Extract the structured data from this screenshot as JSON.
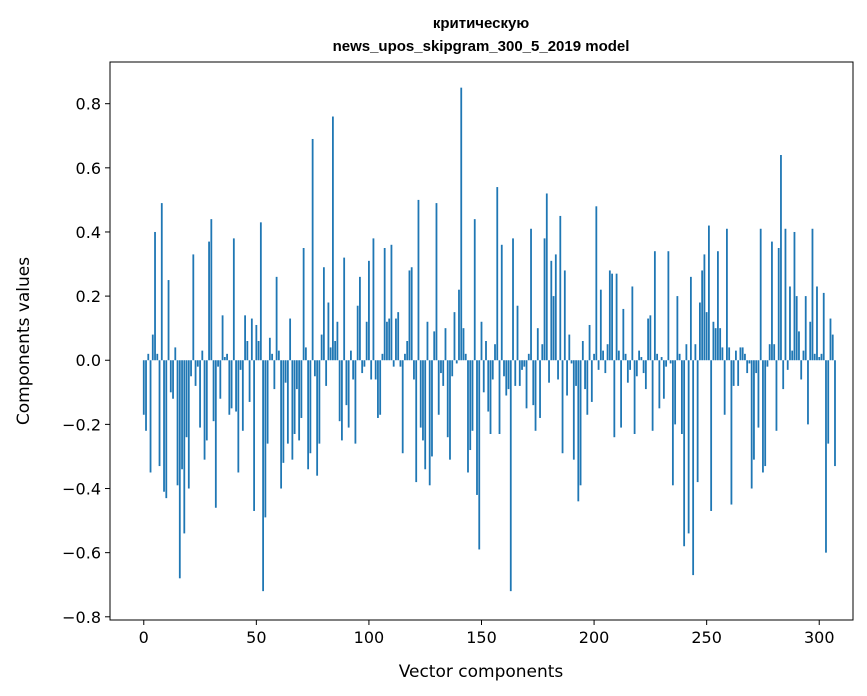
{
  "chart_data": {
    "type": "bar",
    "title_lines": [
      "критическую",
      "news_upos_skipgram_300_5_2019 model"
    ],
    "xlabel": "Vector components",
    "ylabel": "Components values",
    "xlim": [
      -15,
      315
    ],
    "ylim": [
      -0.81,
      0.93
    ],
    "xticks": [
      0,
      50,
      100,
      150,
      200,
      250,
      300
    ],
    "xtick_labels": [
      "0",
      "50",
      "100",
      "150",
      "200",
      "250",
      "300"
    ],
    "yticks": [
      -0.8,
      -0.6,
      -0.4,
      -0.2,
      0.0,
      0.2,
      0.4,
      0.6,
      0.8
    ],
    "ytick_labels": [
      "−0.8",
      "−0.6",
      "−0.4",
      "−0.2",
      "0.0",
      "0.2",
      "0.4",
      "0.6",
      "0.8"
    ],
    "bar_color": "#1f77b4",
    "grid": false,
    "values": [
      -0.17,
      -0.22,
      0.02,
      -0.35,
      0.08,
      0.4,
      0.02,
      -0.33,
      0.49,
      -0.41,
      -0.43,
      0.25,
      -0.1,
      -0.12,
      0.04,
      -0.39,
      -0.68,
      -0.34,
      -0.54,
      -0.24,
      -0.4,
      -0.05,
      0.33,
      -0.08,
      -0.02,
      -0.21,
      0.03,
      -0.31,
      -0.25,
      0.37,
      0.44,
      -0.19,
      -0.46,
      -0.02,
      -0.12,
      0.14,
      0.01,
      0.02,
      -0.17,
      -0.15,
      0.38,
      -0.16,
      -0.35,
      -0.03,
      -0.22,
      0.14,
      0.06,
      -0.13,
      0.13,
      -0.47,
      0.11,
      0.06,
      0.43,
      -0.72,
      -0.49,
      -0.26,
      0.07,
      0.02,
      -0.09,
      0.26,
      0.03,
      -0.4,
      -0.32,
      -0.07,
      -0.26,
      0.13,
      -0.31,
      -0.23,
      -0.09,
      -0.25,
      -0.18,
      0.35,
      0.04,
      -0.34,
      -0.29,
      0.69,
      -0.05,
      -0.36,
      -0.26,
      0.08,
      0.29,
      -0.08,
      0.18,
      0.04,
      0.76,
      0.06,
      0.12,
      -0.19,
      -0.25,
      0.32,
      -0.14,
      -0.21,
      0.03,
      -0.06,
      -0.26,
      0.17,
      0.26,
      -0.04,
      -0.02,
      0.12,
      0.31,
      -0.06,
      0.38,
      -0.06,
      -0.18,
      -0.17,
      0.02,
      0.35,
      0.12,
      0.13,
      0.36,
      -0.02,
      0.13,
      0.15,
      -0.02,
      -0.29,
      0.02,
      0.06,
      0.28,
      0.29,
      -0.06,
      -0.38,
      0.5,
      -0.21,
      -0.25,
      -0.34,
      0.12,
      -0.39,
      -0.3,
      0.09,
      0.49,
      -0.17,
      -0.04,
      -0.08,
      0.1,
      -0.24,
      -0.31,
      -0.05,
      0.15,
      -0.01,
      0.22,
      0.85,
      0.1,
      0.02,
      -0.35,
      -0.28,
      -0.22,
      0.44,
      -0.42,
      -0.59,
      0.12,
      -0.1,
      0.06,
      -0.16,
      -0.23,
      -0.06,
      0.05,
      0.54,
      -0.23,
      0.36,
      -0.05,
      -0.11,
      -0.09,
      -0.72,
      0.38,
      -0.08,
      0.17,
      -0.08,
      -0.03,
      -0.02,
      -0.15,
      0.02,
      0.41,
      -0.14,
      -0.22,
      0.1,
      -0.18,
      0.05,
      0.38,
      0.52,
      -0.07,
      0.31,
      0.2,
      0.33,
      -0.06,
      0.45,
      -0.29,
      0.28,
      -0.11,
      0.08,
      -0.01,
      -0.31,
      -0.08,
      -0.44,
      -0.39,
      0.06,
      -0.09,
      -0.17,
      0.11,
      -0.13,
      0.02,
      0.48,
      -0.03,
      0.22,
      0.03,
      -0.04,
      0.05,
      0.28,
      0.27,
      -0.24,
      0.27,
      0.03,
      -0.21,
      0.16,
      0.02,
      -0.07,
      -0.03,
      0.23,
      -0.23,
      -0.05,
      0.03,
      0.01,
      -0.04,
      -0.09,
      0.13,
      0.14,
      -0.22,
      0.34,
      0.02,
      -0.15,
      0.01,
      -0.12,
      -0.02,
      0.34,
      -0.01,
      -0.39,
      -0.2,
      0.2,
      0.02,
      -0.23,
      -0.58,
      0.05,
      -0.54,
      0.26,
      -0.67,
      0.05,
      -0.38,
      0.18,
      0.28,
      0.33,
      0.15,
      0.42,
      -0.47,
      0.12,
      0.1,
      0.34,
      0.1,
      0.04,
      -0.17,
      0.41,
      0.04,
      -0.45,
      -0.08,
      0.03,
      -0.08,
      0.04,
      0.04,
      0.02,
      -0.04,
      -0.01,
      -0.4,
      -0.31,
      -0.04,
      -0.21,
      0.41,
      -0.35,
      -0.33,
      -0.02,
      0.05,
      0.37,
      0.05,
      -0.22,
      0.35,
      0.64,
      -0.09,
      0.41,
      -0.03,
      0.23,
      0.03,
      0.4,
      0.2,
      0.09,
      -0.06,
      0.03,
      0.2,
      -0.2,
      0.12,
      0.41,
      0.02,
      0.23,
      0.01,
      0.02,
      0.21,
      -0.6,
      -0.26,
      0.13,
      0.08,
      -0.33
    ]
  }
}
